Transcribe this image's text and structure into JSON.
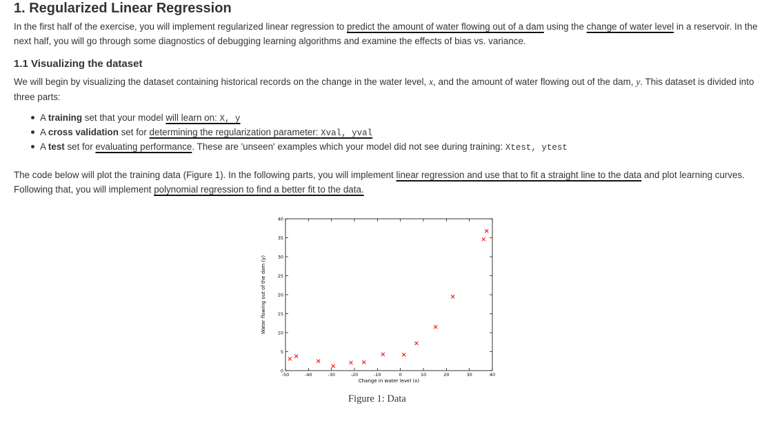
{
  "section": {
    "title": "1. Regularized Linear Regression",
    "intro_a": "In the first half of the exercise, you will implement regularized linear regression to ",
    "intro_u1": "predict the amount of water flowing out of a dam",
    "intro_b": " using the ",
    "intro_u2": "change of water level",
    "intro_c": " in a reservoir. In the next half, you will go through some diagnostics of debugging learning algorithms and examine the effects of bias vs. variance."
  },
  "subsection": {
    "title": "1.1 Visualizing the dataset",
    "para_a": "We will begin by visualizing the dataset containing historical records on the change in the water level, ",
    "var_x": "x",
    "para_b": ", and the amount of water flowing out of the dam, ",
    "var_y": "y",
    "para_c": ". This dataset is divided into three parts:"
  },
  "bullets": [
    {
      "pre": "A ",
      "bold": "training",
      "mid": " set that your model ",
      "under": "will learn on: ",
      "code": "X, y",
      "post": ""
    },
    {
      "pre": "A ",
      "bold": "cross validation",
      "mid": " set for ",
      "under": "determining the regularization parameter: ",
      "code": "Xval, yval",
      "post": ""
    },
    {
      "pre": "A ",
      "bold": "test",
      "mid": " set for ",
      "under": "evaluating performance",
      "post": ". These are 'unseen' examples which your model did not see during training: ",
      "code": "Xtest, ytest"
    }
  ],
  "paragraph2": {
    "a": "The code below will plot the training data (Figure 1). In the following parts, you will implement ",
    "u1": "linear regression and use that to fit a straight line to the data",
    "b": " and plot learning curves. Following that, you will implement ",
    "u2": "polynomial regression to find a better fit to the data.",
    "c": ""
  },
  "figure": {
    "caption": "Figure 1: Data"
  },
  "chart_data": {
    "type": "scatter",
    "xlabel": "Change in water level (x)",
    "ylabel": "Water flowing out of the dam (y)",
    "xlim": [
      -50,
      40
    ],
    "ylim": [
      0,
      40
    ],
    "xticks": [
      -50,
      -40,
      -30,
      -20,
      -10,
      0,
      10,
      20,
      30,
      40
    ],
    "yticks": [
      0,
      5,
      10,
      15,
      20,
      25,
      30,
      35,
      40
    ],
    "marker": "x",
    "marker_color": "#ff0000",
    "grid": false,
    "series": [
      {
        "x": [
          -48.1,
          -45.3,
          -35.7,
          -29.2,
          -21.5,
          -15.9,
          -7.6,
          1.5,
          7.0,
          15.3,
          22.8,
          36.2,
          37.5
        ],
        "y": [
          3.1,
          3.8,
          2.5,
          1.2,
          2.1,
          2.2,
          4.3,
          4.2,
          7.2,
          11.5,
          19.5,
          34.6,
          36.8
        ]
      }
    ]
  }
}
